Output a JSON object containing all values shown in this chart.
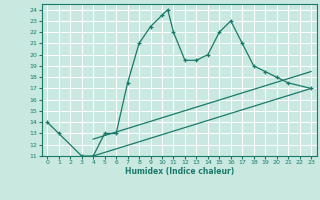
{
  "xlabel": "Humidex (Indice chaleur)",
  "bg_color": "#c8e8e0",
  "grid_color": "#ffffff",
  "line_color": "#1a7a6a",
  "xlim": [
    -0.5,
    23.5
  ],
  "ylim": [
    11,
    24.5
  ],
  "xticks": [
    0,
    1,
    2,
    3,
    4,
    5,
    6,
    7,
    8,
    9,
    10,
    11,
    12,
    13,
    14,
    15,
    16,
    17,
    18,
    19,
    20,
    21,
    22,
    23
  ],
  "yticks": [
    11,
    12,
    13,
    14,
    15,
    16,
    17,
    18,
    19,
    20,
    21,
    22,
    23,
    24
  ],
  "curve_x": [
    0,
    1,
    3,
    4,
    5,
    6,
    7,
    8,
    9,
    10,
    10.5,
    11,
    12,
    13,
    14,
    15,
    16,
    17,
    18,
    19,
    20,
    21,
    23
  ],
  "curve_y": [
    14,
    13,
    11,
    11,
    13,
    13,
    17.5,
    21,
    22.5,
    23.5,
    24,
    22,
    19.5,
    19.5,
    20,
    22,
    23,
    21,
    19,
    18.5,
    18,
    17.5,
    17
  ],
  "line1_x": [
    4,
    23
  ],
  "line1_y": [
    11,
    17
  ],
  "line2_x": [
    4,
    23
  ],
  "line2_y": [
    12.5,
    18.5
  ]
}
